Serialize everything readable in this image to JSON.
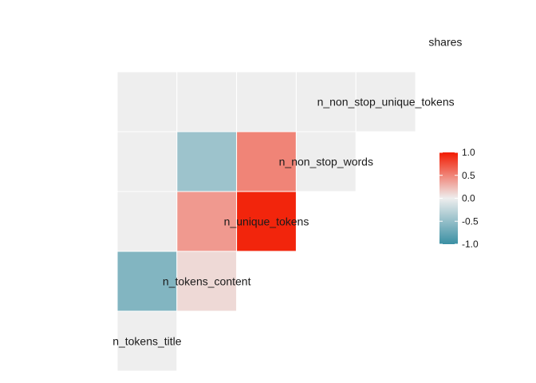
{
  "chart_data": {
    "type": "heatmap",
    "subtype": "lower-triangle-correlation",
    "title": "",
    "variables": [
      "n_tokens_title",
      "n_tokens_content",
      "n_unique_tokens",
      "n_non_stop_words",
      "n_non_stop_unique_tokens",
      "shares"
    ],
    "values": [
      [
        0.0
      ],
      [
        -0.6,
        0.1
      ],
      [
        0.0,
        0.4,
        0.95
      ],
      [
        0.0,
        -0.45,
        0.5,
        0.0
      ],
      [
        0.0,
        0.0,
        0.0,
        0.0,
        0.0
      ]
    ],
    "value_range": [
      -1,
      1
    ],
    "colors": {
      "low": "#3a8fa3",
      "mid": "#eeeeee",
      "high": "#f21a00"
    },
    "legend": {
      "position": "right",
      "ticks": [
        "1.0",
        "0.5",
        "0.0",
        "-0.5",
        "-1.0"
      ]
    }
  }
}
